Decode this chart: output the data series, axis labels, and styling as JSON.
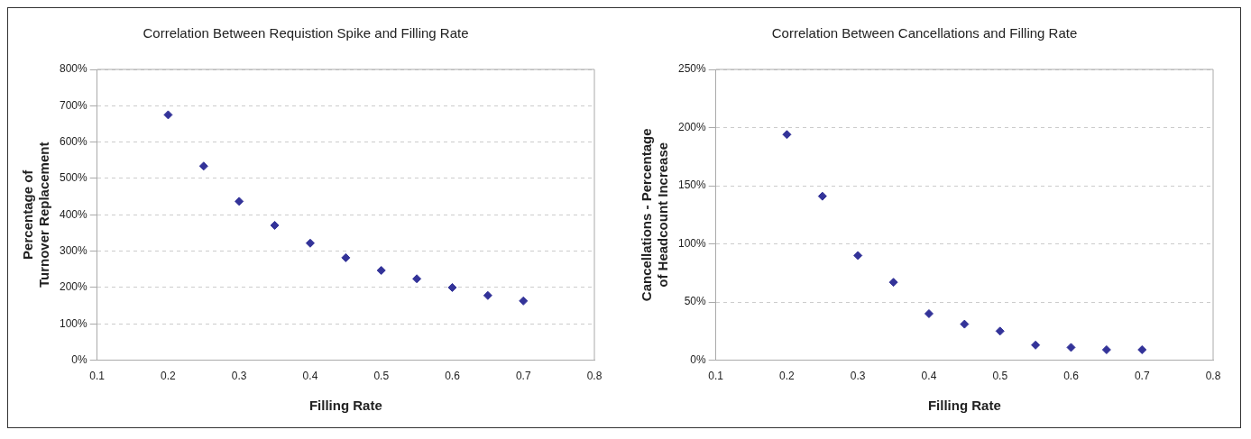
{
  "chart_data": [
    {
      "type": "scatter",
      "title": "Correlation Between Requistion Spike and Filling Rate",
      "xlabel": "Filling Rate",
      "ylabel": "Percentage of Turnover Replacement",
      "x": [
        0.2,
        0.25,
        0.3,
        0.35,
        0.4,
        0.45,
        0.5,
        0.55,
        0.6,
        0.65,
        0.7
      ],
      "series": [
        {
          "color": "#333399",
          "values": [
            675,
            534,
            437,
            371,
            322,
            282,
            247,
            224,
            200,
            178,
            163
          ]
        }
      ],
      "xlim": [
        0.1,
        0.8
      ],
      "xticks": [
        0.1,
        0.2,
        0.3,
        0.4,
        0.5,
        0.6,
        0.7,
        0.8
      ],
      "ylim": [
        0,
        800
      ],
      "yticks": [
        {
          "value": 0,
          "label": "0%"
        },
        {
          "value": 100,
          "label": "100%"
        },
        {
          "value": 200,
          "label": "200%"
        },
        {
          "value": 300,
          "label": "300%"
        },
        {
          "value": 400,
          "label": "400%"
        },
        {
          "value": 500,
          "label": "500%"
        },
        {
          "value": 600,
          "label": "600%"
        },
        {
          "value": 700,
          "label": "700%"
        },
        {
          "value": 800,
          "label": "800%"
        }
      ],
      "grid": "y",
      "marker": "diamond"
    },
    {
      "type": "scatter",
      "title": "Correlation Between Cancellations and Filling Rate",
      "xlabel": "Filling Rate",
      "ylabel": "Cancellations - Percentage of Headcount Increase",
      "x": [
        0.2,
        0.25,
        0.3,
        0.35,
        0.4,
        0.45,
        0.5,
        0.55,
        0.6,
        0.65,
        0.7
      ],
      "series": [
        {
          "color": "#333399",
          "values": [
            194,
            141,
            90,
            67,
            40,
            31,
            25,
            13,
            11,
            9,
            9
          ]
        }
      ],
      "xlim": [
        0.1,
        0.8
      ],
      "xticks": [
        0.1,
        0.2,
        0.3,
        0.4,
        0.5,
        0.6,
        0.7,
        0.8
      ],
      "ylim": [
        0,
        250
      ],
      "yticks": [
        {
          "value": 0,
          "label": "0%"
        },
        {
          "value": 50,
          "label": "50%"
        },
        {
          "value": 100,
          "label": "100%"
        },
        {
          "value": 150,
          "label": "150%"
        },
        {
          "value": 200,
          "label": "200%"
        },
        {
          "value": 250,
          "label": "250%"
        }
      ],
      "grid": "y",
      "marker": "diamond"
    }
  ]
}
